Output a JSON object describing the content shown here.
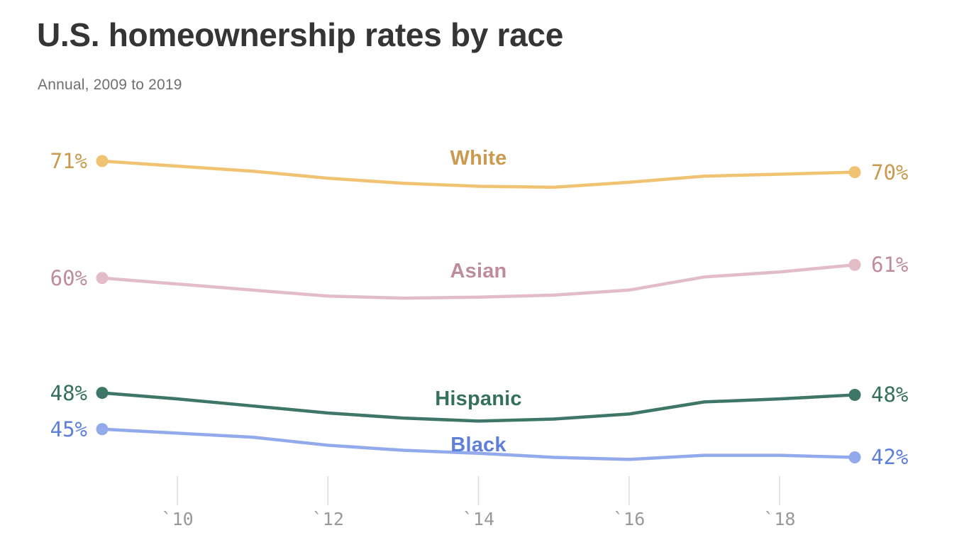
{
  "header": {
    "title": "U.S. homeownership rates by race",
    "subtitle": "Annual, 2009 to 2019"
  },
  "chart_data": {
    "type": "line",
    "title": "U.S. homeownership rates by race",
    "subtitle": "Annual, 2009 to 2019",
    "xlabel": "",
    "ylabel": "",
    "unit": "%",
    "grid": false,
    "legend": "inline-series-labels",
    "x": [
      2009,
      2010,
      2011,
      2012,
      2013,
      2014,
      2015,
      2016,
      2017,
      2018,
      2019
    ],
    "xlim": [
      2009,
      2019
    ],
    "ylim": [
      40,
      73
    ],
    "x_ticks": [
      {
        "year": 2010,
        "label": "`10"
      },
      {
        "year": 2012,
        "label": "`12"
      },
      {
        "year": 2014,
        "label": "`14"
      },
      {
        "year": 2016,
        "label": "`16"
      },
      {
        "year": 2018,
        "label": "`18"
      }
    ],
    "axis": {
      "tick_color": "#dcdcdc",
      "tick_label_color": "#98999b"
    },
    "series": [
      {
        "name": "White",
        "start_label": "71%",
        "end_label": "70%",
        "line_color": "#f0c373",
        "text_color": "#ca9a4e",
        "label_year": 2014,
        "label_dy": 40,
        "values": [
          71.4,
          70.9,
          70.4,
          69.7,
          69.2,
          68.9,
          68.8,
          69.3,
          69.9,
          70.1,
          70.3
        ]
      },
      {
        "name": "Asian",
        "start_label": "60%",
        "end_label": "61%",
        "line_color": "#e2bdc7",
        "text_color": "#be8c9c",
        "label_year": 2014,
        "label_dy": 37,
        "values": [
          59.8,
          59.2,
          58.6,
          58.0,
          57.8,
          57.9,
          58.1,
          58.6,
          59.9,
          60.4,
          61.1
        ]
      },
      {
        "name": "Hispanic",
        "start_label": "48%",
        "end_label": "48%",
        "line_color": "#3e7667",
        "text_color": "#35705f",
        "label_year": 2014,
        "label_dy": 31,
        "values": [
          48.4,
          47.8,
          47.1,
          46.4,
          45.9,
          45.6,
          45.8,
          46.3,
          47.5,
          47.8,
          48.2
        ]
      },
      {
        "name": "Black",
        "start_label": "45%",
        "end_label": "42%",
        "line_color": "#92a9ec",
        "text_color": "#5e80da",
        "label_year": 2014,
        "label_dy": 12,
        "values": [
          44.8,
          44.4,
          44.0,
          43.2,
          42.7,
          42.4,
          42.0,
          41.8,
          42.2,
          42.2,
          42.0
        ]
      }
    ]
  }
}
